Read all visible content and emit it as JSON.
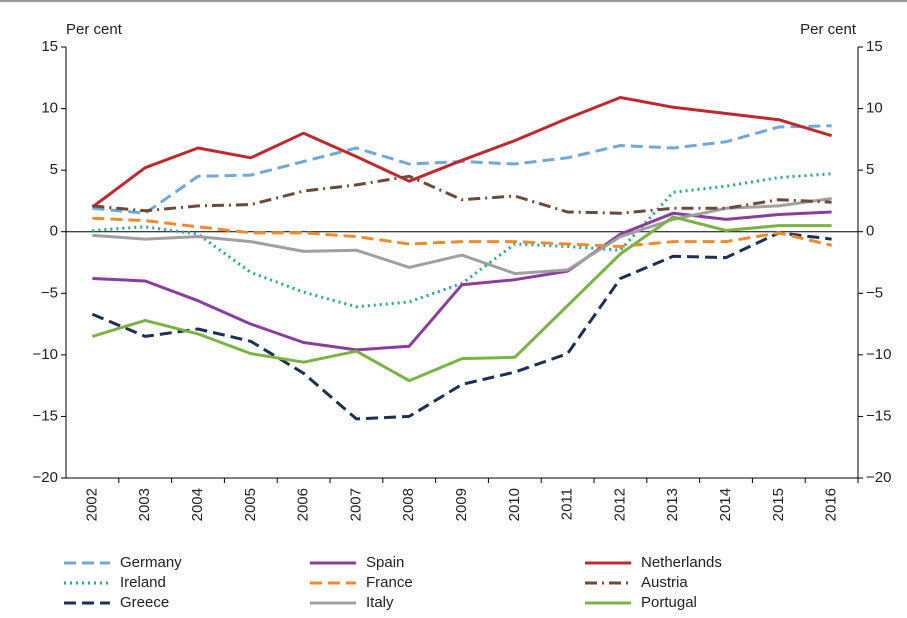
{
  "chart_data": {
    "type": "line",
    "y_label": "Per cent",
    "y2_label": "Per cent",
    "categories": [
      "2002",
      "2003",
      "2004",
      "2005",
      "2006",
      "2007",
      "2008",
      "2009",
      "2010",
      "2011",
      "2012",
      "2013",
      "2014",
      "2015",
      "2016"
    ],
    "ylim": [
      -20,
      15
    ],
    "yticks": [
      {
        "value": -20,
        "label": "−20"
      },
      {
        "value": -15,
        "label": "−15"
      },
      {
        "value": -10,
        "label": "−10"
      },
      {
        "value": -5,
        "label": "−5"
      },
      0,
      5,
      10,
      15
    ],
    "y2lim": [
      -20,
      15
    ],
    "y2ticks": [
      {
        "value": -20,
        "label": "−20"
      },
      {
        "value": -15,
        "label": "−15"
      },
      {
        "value": -10,
        "label": "−10"
      },
      {
        "value": -5,
        "label": "−5"
      },
      0,
      5,
      10,
      15
    ],
    "grid": false,
    "legend": "bottom",
    "series": [
      {
        "name": "Germany",
        "color": "#6fa8dc",
        "dash": "dashed",
        "values": [
          1.9,
          1.5,
          4.5,
          4.6,
          5.7,
          6.8,
          5.5,
          5.7,
          5.5,
          6.0,
          7.0,
          6.8,
          7.3,
          8.5,
          8.6
        ]
      },
      {
        "name": "Ireland",
        "color": "#1fa89a",
        "dash": "dotted",
        "values": [
          0.1,
          0.4,
          -0.2,
          -3.3,
          -4.9,
          -6.1,
          -5.7,
          -4.2,
          -1.0,
          -1.2,
          -1.5,
          3.2,
          3.7,
          4.4,
          4.7
        ]
      },
      {
        "name": "Greece",
        "color": "#1c2f55",
        "dash": "dashed",
        "values": [
          -6.7,
          -8.5,
          -7.9,
          -8.9,
          -11.5,
          -15.2,
          -15.0,
          -12.4,
          -11.4,
          -9.9,
          -3.8,
          -2.0,
          -2.1,
          -0.1,
          -0.6
        ]
      },
      {
        "name": "Spain",
        "color": "#8b3d9e",
        "dash": "solid",
        "values": [
          -3.8,
          -4.0,
          -5.6,
          -7.5,
          -9.0,
          -9.6,
          -9.3,
          -4.3,
          -3.9,
          -3.2,
          -0.2,
          1.5,
          1.0,
          1.4,
          1.6
        ]
      },
      {
        "name": "France",
        "color": "#f08a2c",
        "dash": "dashed",
        "values": [
          1.1,
          0.9,
          0.4,
          -0.1,
          -0.1,
          -0.4,
          -1.0,
          -0.8,
          -0.8,
          -1.0,
          -1.2,
          -0.8,
          -0.8,
          -0.1,
          -1.1
        ]
      },
      {
        "name": "Italy",
        "color": "#a0a0a0",
        "dash": "solid",
        "values": [
          -0.3,
          -0.6,
          -0.4,
          -0.8,
          -1.6,
          -1.5,
          -2.9,
          -1.9,
          -3.4,
          -3.1,
          -0.4,
          1.0,
          1.9,
          2.1,
          2.7
        ]
      },
      {
        "name": "Netherlands",
        "color": "#c0282d",
        "dash": "solid",
        "values": [
          2.0,
          5.2,
          6.8,
          6.0,
          8.0,
          6.1,
          4.1,
          5.8,
          7.4,
          9.2,
          10.9,
          10.1,
          9.6,
          9.1,
          7.8
        ]
      },
      {
        "name": "Austria",
        "color": "#6b4a3a",
        "dash": "dashdot",
        "values": [
          2.1,
          1.7,
          2.1,
          2.2,
          3.3,
          3.8,
          4.5,
          2.6,
          2.9,
          1.6,
          1.5,
          1.9,
          1.9,
          2.6,
          2.4
        ]
      },
      {
        "name": "Portugal",
        "color": "#7ab341",
        "dash": "solid",
        "values": [
          -8.5,
          -7.2,
          -8.3,
          -9.9,
          -10.6,
          -9.7,
          -12.1,
          -10.3,
          -10.2,
          -6.0,
          -1.8,
          1.2,
          0.1,
          0.5,
          0.5
        ]
      }
    ]
  }
}
